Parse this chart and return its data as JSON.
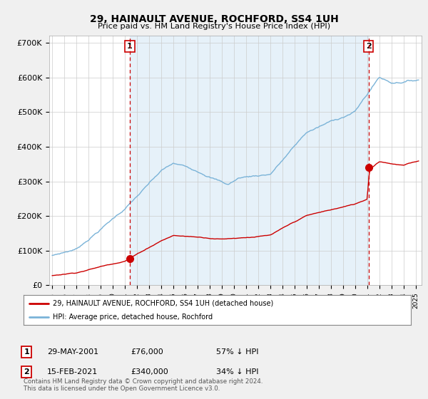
{
  "title": "29, HAINAULT AVENUE, ROCHFORD, SS4 1UH",
  "subtitle": "Price paid vs. HM Land Registry's House Price Index (HPI)",
  "ylabel_ticks": [
    "£0",
    "£100K",
    "£200K",
    "£300K",
    "£400K",
    "£500K",
    "£600K",
    "£700K"
  ],
  "ytick_values": [
    0,
    100000,
    200000,
    300000,
    400000,
    500000,
    600000,
    700000
  ],
  "ylim": [
    0,
    720000
  ],
  "xlim_start": 1994.75,
  "xlim_end": 2025.5,
  "hpi_color": "#7ab3d8",
  "hpi_fill_color": "#d6e8f5",
  "price_color": "#cc0000",
  "dashed_color": "#cc0000",
  "marker_color": "#cc0000",
  "sale1_x": 2001.41,
  "sale1_y": 76000,
  "sale2_x": 2021.12,
  "sale2_y": 340000,
  "legend_label1": "29, HAINAULT AVENUE, ROCHFORD, SS4 1UH (detached house)",
  "legend_label2": "HPI: Average price, detached house, Rochford",
  "table_row1_num": "1",
  "table_row1_date": "29-MAY-2001",
  "table_row1_price": "£76,000",
  "table_row1_hpi": "57% ↓ HPI",
  "table_row2_num": "2",
  "table_row2_date": "15-FEB-2021",
  "table_row2_price": "£340,000",
  "table_row2_hpi": "34% ↓ HPI",
  "footer": "Contains HM Land Registry data © Crown copyright and database right 2024.\nThis data is licensed under the Open Government Licence v3.0.",
  "bg_color": "#f0f0f0",
  "plot_bg_color": "#ffffff",
  "grid_color": "#cccccc"
}
